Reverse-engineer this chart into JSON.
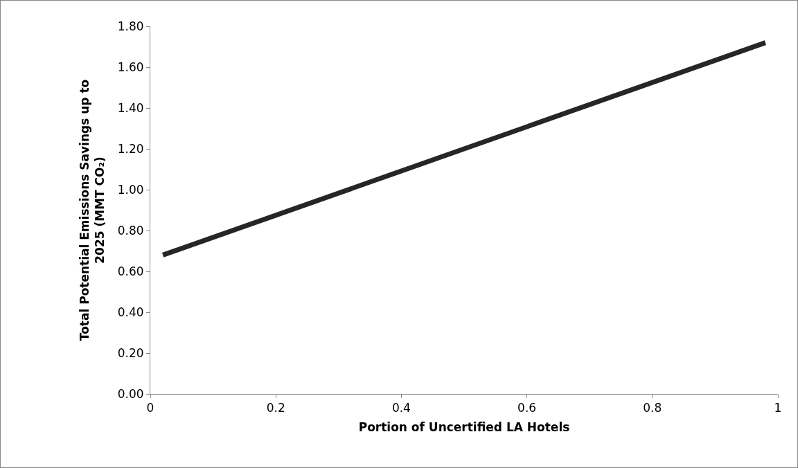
{
  "chart_data": {
    "type": "line",
    "xlabel": "Portion of Uncertified LA Hotels",
    "ylabel": "Total Potential Emissions Savings up to 2025 (MMT CO₂)",
    "x": [
      0.02,
      0.5,
      0.98
    ],
    "series": [
      {
        "color": "#262626",
        "values": [
          0.68,
          1.2,
          1.72
        ]
      }
    ],
    "xlim": [
      0,
      1
    ],
    "xticks": [
      0,
      {
        "value": 0.2,
        "label": "0.2"
      },
      {
        "value": 0.4,
        "label": "0.4"
      },
      {
        "value": 0.6,
        "label": "0.6"
      },
      {
        "value": 0.8,
        "label": "0.8"
      },
      1
    ],
    "ylim": [
      0,
      1.8
    ],
    "yticks": [
      {
        "value": 0,
        "label": "0.00"
      },
      {
        "value": 0.2,
        "label": "0.20"
      },
      {
        "value": 0.4,
        "label": "0.40"
      },
      {
        "value": 0.6,
        "label": "0.60"
      },
      {
        "value": 0.8,
        "label": "0.80"
      },
      {
        "value": 1,
        "label": "1.00"
      },
      {
        "value": 1.2,
        "label": "1.20"
      },
      {
        "value": 1.4,
        "label": "1.40"
      },
      {
        "value": 1.6,
        "label": "1.60"
      },
      {
        "value": 1.8,
        "label": "1.80"
      }
    ],
    "grid": false,
    "legend": false,
    "marker": "none",
    "line_style": "solid"
  }
}
